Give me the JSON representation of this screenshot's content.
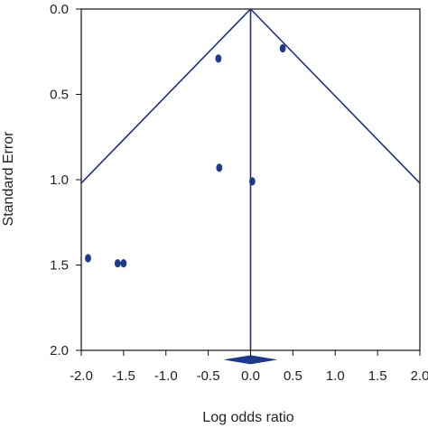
{
  "chart_data": {
    "type": "scatter",
    "subtype": "funnel-plot",
    "title": "",
    "xlabel": "Log odds ratio",
    "ylabel": "Standard Error",
    "xlim": [
      -2.0,
      2.0
    ],
    "ylim": [
      0.0,
      2.0
    ],
    "y_inverted": true,
    "grid": false,
    "x_ticks": [
      "-2.0",
      "-1.5",
      "-1.0",
      "-0.5",
      "0.0",
      "0.5",
      "1.0",
      "1.5",
      "2.0"
    ],
    "y_ticks": [
      "0.0",
      "0.5",
      "1.0",
      "1.5",
      "2.0"
    ],
    "x_tick_values": [
      -2.0,
      -1.5,
      -1.0,
      -0.5,
      0.0,
      0.5,
      1.0,
      1.5,
      2.0
    ],
    "y_tick_values": [
      0.0,
      0.5,
      1.0,
      1.5,
      2.0
    ],
    "points": [
      {
        "x": -0.38,
        "y": 0.29
      },
      {
        "x": 0.38,
        "y": 0.23
      },
      {
        "x": -0.37,
        "y": 0.93
      },
      {
        "x": 0.02,
        "y": 1.01
      },
      {
        "x": -1.92,
        "y": 1.46
      },
      {
        "x": -1.57,
        "y": 1.49
      },
      {
        "x": -1.5,
        "y": 1.49
      }
    ],
    "pooled_estimate": 0.0,
    "funnel_apex": {
      "x": 0.0,
      "y": 0.0
    },
    "funnel_slope": 1.96,
    "diamond": {
      "center": 0.0,
      "lower": -0.32,
      "upper": 0.32,
      "y": 2.055
    },
    "colors": {
      "line": "#1f2f7a",
      "point": "#1f3a8a",
      "diamond": "#1f3a8a",
      "frame": "#111111"
    }
  }
}
